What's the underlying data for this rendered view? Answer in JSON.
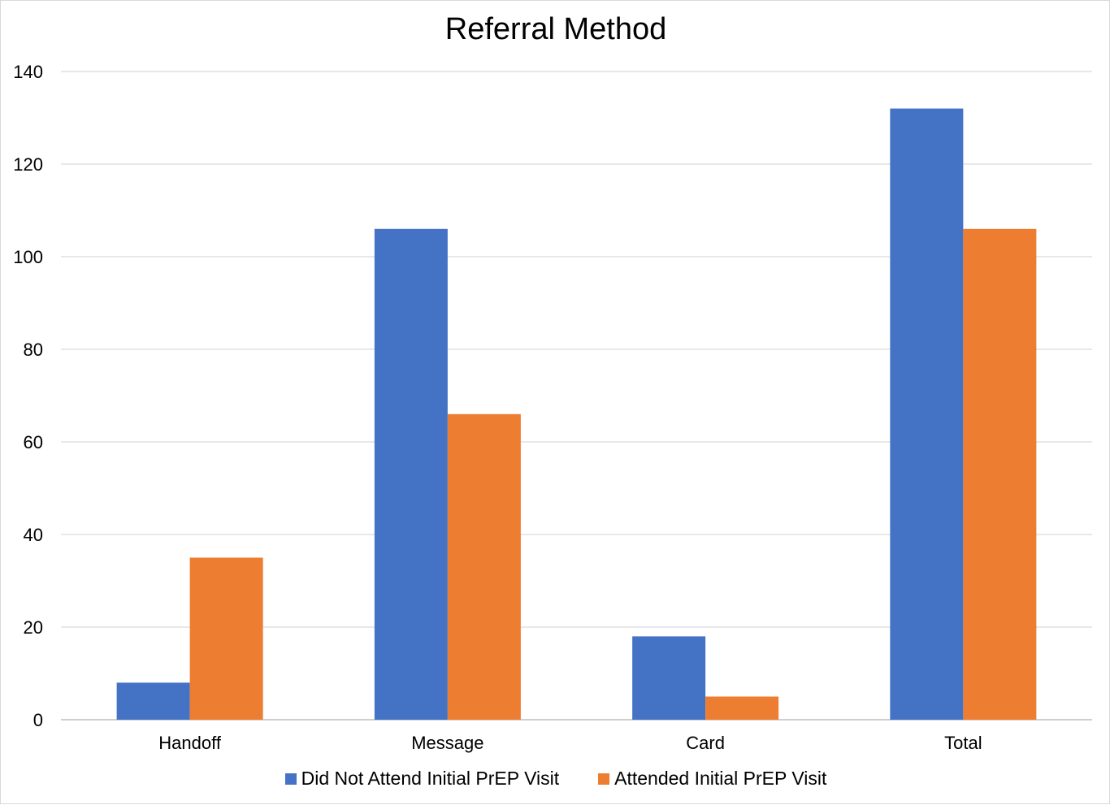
{
  "chart_data": {
    "type": "bar",
    "title": "Referral Method",
    "xlabel": "",
    "ylabel": "",
    "categories": [
      "Handoff",
      "Message",
      "Card",
      "Total"
    ],
    "series": [
      {
        "name": "Did Not Attend Initial PrEP Visit",
        "color": "#4472C4",
        "values": [
          8,
          106,
          18,
          132
        ]
      },
      {
        "name": "Attended Initial PrEP Visit",
        "color": "#ED7D31",
        "values": [
          35,
          66,
          5,
          106
        ]
      }
    ],
    "ylim": [
      0,
      140
    ],
    "yticks": [
      0,
      20,
      40,
      60,
      80,
      100,
      120,
      140
    ],
    "grid": true,
    "legend_position": "bottom"
  }
}
